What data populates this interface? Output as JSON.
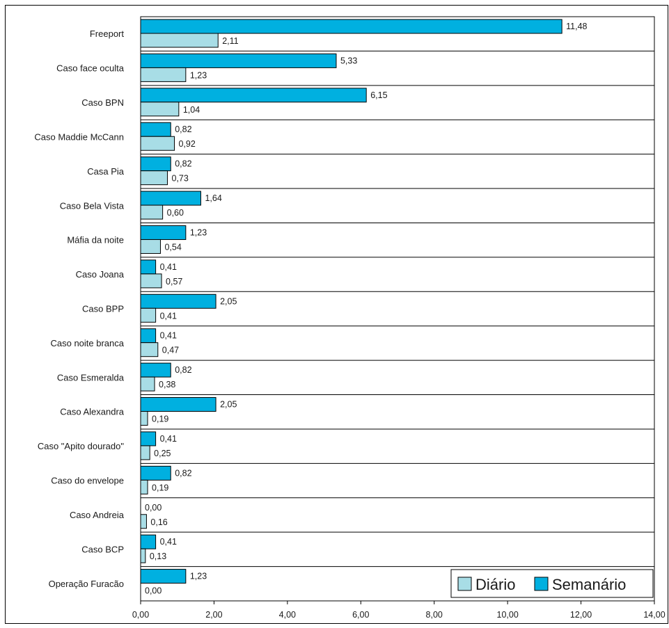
{
  "chart_data": {
    "type": "bar",
    "orientation": "horizontal",
    "categories": [
      "Freeport",
      "Caso face oculta",
      "Caso BPN",
      "Caso Maddie McCann",
      "Casa Pia",
      "Caso Bela Vista",
      "Máfia da noite",
      "Caso Joana",
      "Caso BPP",
      "Caso noite branca",
      "Caso Esmeralda",
      "Caso Alexandra",
      "Caso \"Apito dourado\"",
      "Caso do envelope",
      "Caso Andreia",
      "Caso BCP",
      "Operação Furacão"
    ],
    "series": [
      {
        "name": "Semanário",
        "color": "#00b0e0",
        "values": [
          11.48,
          5.33,
          6.15,
          0.82,
          0.82,
          1.64,
          1.23,
          0.41,
          2.05,
          0.41,
          0.82,
          2.05,
          0.41,
          0.82,
          0.0,
          0.41,
          1.23
        ],
        "labels": [
          "11,48",
          "5,33",
          "6,15",
          "0,82",
          "0,82",
          "1,64",
          "1,23",
          "0,41",
          "2,05",
          "0,41",
          "0,82",
          "2,05",
          "0,41",
          "0,82",
          "0,00",
          "0,41",
          "1,23"
        ]
      },
      {
        "name": "Diário",
        "color": "#a8dde6",
        "values": [
          2.11,
          1.23,
          1.04,
          0.92,
          0.73,
          0.6,
          0.54,
          0.57,
          0.41,
          0.47,
          0.38,
          0.19,
          0.25,
          0.19,
          0.16,
          0.13,
          0.0
        ],
        "labels": [
          "2,11",
          "1,23",
          "1,04",
          "0,92",
          "0,73",
          "0,60",
          "0,54",
          "0,57",
          "0,41",
          "0,47",
          "0,38",
          "0,19",
          "0,25",
          "0,19",
          "0,16",
          "0,13",
          "0,00"
        ]
      }
    ],
    "xlim": [
      0,
      14
    ],
    "x_ticks": [
      "0,00",
      "2,00",
      "4,00",
      "6,00",
      "8,00",
      "10,00",
      "12,00",
      "14,00"
    ],
    "legend": {
      "position": "bottom-right",
      "entries": [
        {
          "label": "Diário",
          "color": "#a8dde6"
        },
        {
          "label": "Semanário",
          "color": "#00b0e0"
        }
      ]
    },
    "grid": "horizontal separators between categories",
    "title": "",
    "xlabel": "",
    "ylabel": ""
  }
}
